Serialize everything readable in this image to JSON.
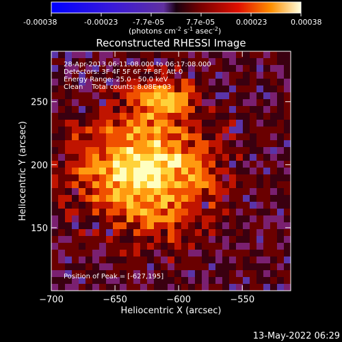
{
  "colorbar": {
    "ticks": [
      "-0.00038",
      "-0.00023",
      "-7.7e-05",
      "7.7e-05",
      "0.00023",
      "0.00038"
    ],
    "unit_label_main": "(photons cm",
    "unit_label_sup1": "-2",
    "unit_label_mid1": " s",
    "unit_label_sup2": "-1",
    "unit_label_mid2": " asec",
    "unit_label_sup3": "-2",
    "unit_label_end": ")"
  },
  "chart_data": {
    "type": "heatmap",
    "title": "Reconstructed RHESSI Image",
    "xlabel": "Heliocentric X (arcsec)",
    "ylabel": "Heliocentric Y (arcsec)",
    "xlim": [
      -700,
      -512
    ],
    "ylim": [
      100,
      290
    ],
    "x_ticks": [
      -700,
      -650,
      -600,
      -550
    ],
    "y_ticks": [
      150,
      200,
      250
    ],
    "x_tick_labels": [
      "−700",
      "−650",
      "−600",
      "−550"
    ],
    "y_tick_labels": [
      "150",
      "200",
      "250"
    ],
    "colorbar_range": [
      -0.00038,
      0.00038
    ],
    "annotations": [
      "28-Apr-2013 06:11:08.000 to 06:17:08.000",
      "Detectors: 3F 4F 5F 6F 7F 8F, Att 0",
      "Energy Range: 25.0 - 50.0 keV",
      "Clean    Total counts: 8.08E+03"
    ],
    "peak_label": "Position of Peak = [-627,195]",
    "peak": [
      -627,
      195
    ],
    "source_region": "bright emission spanning roughly x -700 to -590, y 125 to 270"
  },
  "footer": {
    "timestamp": "13-May-2022 06:29"
  },
  "colors": {
    "background": "#000000",
    "text": "#ffffff"
  }
}
